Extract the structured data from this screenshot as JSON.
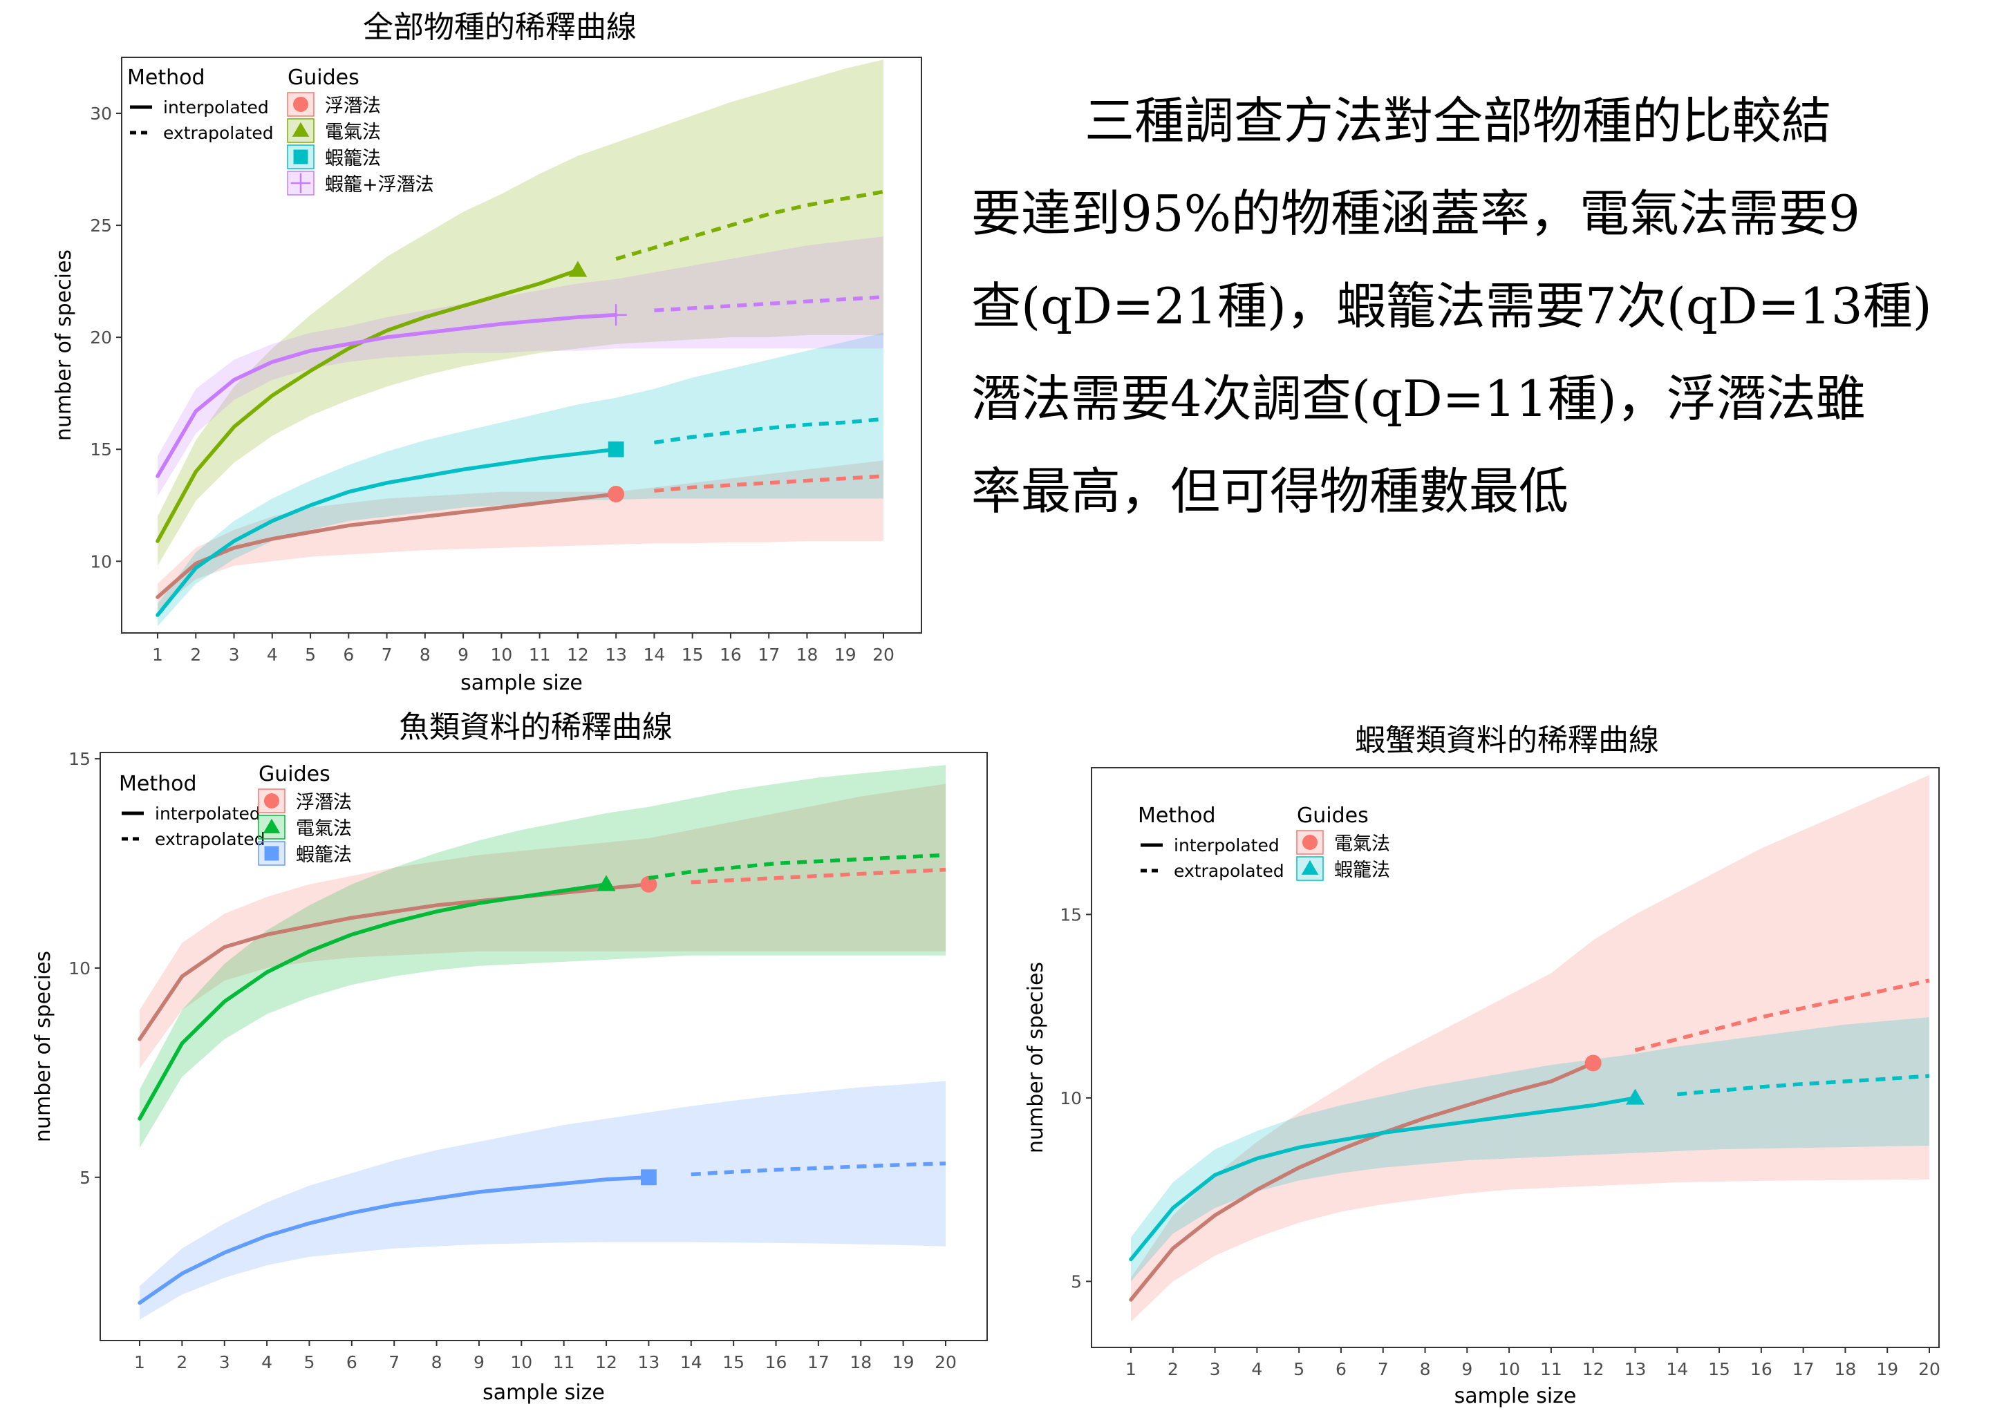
{
  "summary": {
    "lines": [
      "三種調查方法對全部物種的比較結",
      "要達到95%的物種涵蓋率，電氣法需要9",
      "查(qD=21種)，蝦籠法需要7次(qD=13種)",
      "潛法需要4次調查(qD=11種)，浮潛法雖",
      "率最高，但可得物種數最低"
    ]
  },
  "colors": {
    "red": "#F8766D",
    "red_line": "#C77C72",
    "olive": "#7CAE00",
    "teal": "#00BFC4",
    "purple": "#C77CFF",
    "green": "#00BA38",
    "blue": "#619CFF"
  },
  "chart_data": [
    {
      "type": "line",
      "title": "全部物種的稀釋曲線",
      "xlabel": "sample size",
      "ylabel": "number of species",
      "xlim": [
        1,
        20
      ],
      "ylim": [
        6.8,
        32.5
      ],
      "yticks": [
        10,
        15,
        20,
        25,
        30
      ],
      "xticks": [
        1,
        2,
        3,
        4,
        5,
        6,
        7,
        8,
        9,
        10,
        11,
        12,
        13,
        14,
        15,
        16,
        17,
        18,
        19,
        20
      ],
      "grid": false,
      "legend": {
        "method_title": "Method",
        "method_items": [
          "interpolated",
          "extrapolated"
        ],
        "guides_title": "Guides",
        "guides_items": [
          "浮潛法",
          "電氣法",
          "蝦籠法",
          "蝦籠+浮潛法"
        ]
      },
      "series": [
        {
          "name": "浮潛法",
          "color": "#F8766D",
          "line_color": "#C77C72",
          "marker": "circle",
          "obs_x": 13,
          "x": [
            1,
            2,
            3,
            4,
            5,
            6,
            7,
            8,
            9,
            10,
            11,
            12,
            13,
            14,
            15,
            16,
            17,
            18,
            19,
            20
          ],
          "y": [
            8.4,
            9.9,
            10.6,
            11.0,
            11.3,
            11.6,
            11.8,
            12.0,
            12.2,
            12.4,
            12.6,
            12.8,
            13.0,
            13.15,
            13.3,
            13.4,
            13.5,
            13.6,
            13.7,
            13.8
          ],
          "lower": [
            7.8,
            9.2,
            9.8,
            10.0,
            10.2,
            10.3,
            10.4,
            10.5,
            10.55,
            10.6,
            10.65,
            10.7,
            10.75,
            10.8,
            10.8,
            10.85,
            10.85,
            10.9,
            10.9,
            10.9
          ],
          "upper": [
            9.0,
            10.6,
            11.4,
            12.0,
            12.4,
            12.6,
            12.8,
            12.9,
            13.0,
            13.1,
            13.1,
            13.1,
            13.1,
            13.3,
            13.5,
            13.7,
            13.9,
            14.1,
            14.3,
            14.5
          ]
        },
        {
          "name": "電氣法",
          "color": "#7CAE00",
          "line_color": "#7CAE00",
          "marker": "triangle",
          "obs_x": 12,
          "x": [
            1,
            2,
            3,
            4,
            5,
            6,
            7,
            8,
            9,
            10,
            11,
            12,
            13,
            14,
            15,
            16,
            17,
            18,
            19,
            20
          ],
          "y": [
            10.9,
            14.0,
            16.0,
            17.4,
            18.5,
            19.5,
            20.3,
            20.9,
            21.4,
            21.9,
            22.4,
            23.0,
            23.5,
            24.0,
            24.5,
            25.0,
            25.5,
            25.9,
            26.2,
            26.5
          ],
          "lower": [
            9.8,
            12.7,
            14.4,
            15.6,
            16.5,
            17.2,
            17.8,
            18.3,
            18.7,
            19.0,
            19.3,
            19.5,
            19.7,
            19.8,
            19.9,
            20.0,
            20.0,
            20.1,
            20.1,
            20.1
          ],
          "upper": [
            12.0,
            15.4,
            17.8,
            19.5,
            21.0,
            22.3,
            23.6,
            24.6,
            25.6,
            26.4,
            27.3,
            28.1,
            28.7,
            29.3,
            29.9,
            30.5,
            31.0,
            31.5,
            32.0,
            32.4
          ]
        },
        {
          "name": "蝦籠法",
          "color": "#00BFC4",
          "line_color": "#00BFC4",
          "marker": "square",
          "obs_x": 13,
          "x": [
            1,
            2,
            3,
            4,
            5,
            6,
            7,
            8,
            9,
            10,
            11,
            12,
            13,
            14,
            15,
            16,
            17,
            18,
            19,
            20
          ],
          "y": [
            7.6,
            9.7,
            10.9,
            11.8,
            12.5,
            13.1,
            13.5,
            13.8,
            14.1,
            14.35,
            14.6,
            14.8,
            15.0,
            15.3,
            15.55,
            15.75,
            15.95,
            16.1,
            16.2,
            16.35
          ],
          "lower": [
            7.1,
            9.0,
            10.1,
            10.9,
            11.4,
            11.8,
            12.0,
            12.2,
            12.4,
            12.5,
            12.6,
            12.7,
            12.75,
            12.8,
            12.8,
            12.8,
            12.8,
            12.8,
            12.8,
            12.8
          ],
          "upper": [
            8.1,
            10.4,
            11.8,
            12.8,
            13.6,
            14.3,
            14.9,
            15.4,
            15.8,
            16.2,
            16.6,
            17.0,
            17.3,
            17.7,
            18.2,
            18.6,
            19.0,
            19.4,
            19.8,
            20.2
          ]
        },
        {
          "name": "蝦籠+浮潛法",
          "color": "#C77CFF",
          "line_color": "#C77CFF",
          "marker": "plus",
          "obs_x": 13,
          "x": [
            1,
            2,
            3,
            4,
            5,
            6,
            7,
            8,
            9,
            10,
            11,
            12,
            13,
            14,
            15,
            16,
            17,
            18,
            19,
            20
          ],
          "y": [
            13.8,
            16.7,
            18.1,
            18.9,
            19.4,
            19.7,
            20.0,
            20.2,
            20.4,
            20.6,
            20.75,
            20.9,
            21.0,
            21.2,
            21.3,
            21.4,
            21.5,
            21.6,
            21.7,
            21.8
          ],
          "lower": [
            12.9,
            15.7,
            17.2,
            18.1,
            18.6,
            18.9,
            19.1,
            19.2,
            19.3,
            19.3,
            19.4,
            19.4,
            19.5,
            19.5,
            19.5,
            19.5,
            19.5,
            19.5,
            19.5,
            19.5
          ],
          "upper": [
            14.7,
            17.7,
            19.0,
            19.7,
            20.2,
            20.5,
            20.9,
            21.2,
            21.5,
            21.8,
            22.1,
            22.4,
            22.6,
            22.9,
            23.2,
            23.5,
            23.8,
            24.1,
            24.3,
            24.5
          ]
        }
      ]
    },
    {
      "type": "line",
      "title": "魚類資料的稀釋曲線",
      "xlabel": "sample size",
      "ylabel": "number of species",
      "xlim": [
        1,
        20
      ],
      "ylim": [
        1.1,
        15.15
      ],
      "yticks": [
        5,
        10,
        15
      ],
      "xticks": [
        1,
        2,
        3,
        4,
        5,
        6,
        7,
        8,
        9,
        10,
        11,
        12,
        13,
        14,
        15,
        16,
        17,
        18,
        19,
        20
      ],
      "grid": false,
      "legend": {
        "method_title": "Method",
        "method_items": [
          "interpolated",
          "extrapolated"
        ],
        "guides_title": "Guides",
        "guides_items": [
          "浮潛法",
          "電氣法",
          "蝦籠法"
        ]
      },
      "series": [
        {
          "name": "浮潛法",
          "color": "#F8766D",
          "line_color": "#C77C72",
          "marker": "circle",
          "obs_x": 13,
          "x": [
            1,
            2,
            3,
            4,
            5,
            6,
            7,
            8,
            9,
            10,
            11,
            12,
            13,
            14,
            15,
            16,
            17,
            18,
            19,
            20
          ],
          "y": [
            8.3,
            9.8,
            10.5,
            10.8,
            11.0,
            11.2,
            11.35,
            11.5,
            11.6,
            11.7,
            11.8,
            11.9,
            12.0,
            12.05,
            12.1,
            12.15,
            12.2,
            12.25,
            12.3,
            12.35
          ],
          "lower": [
            7.6,
            9.0,
            9.7,
            10.0,
            10.15,
            10.25,
            10.3,
            10.35,
            10.4,
            10.4,
            10.4,
            10.4,
            10.4,
            10.4,
            10.4,
            10.4,
            10.4,
            10.4,
            10.4,
            10.4
          ],
          "upper": [
            9.0,
            10.6,
            11.3,
            11.7,
            12.0,
            12.2,
            12.4,
            12.55,
            12.7,
            12.8,
            12.9,
            13.0,
            13.1,
            13.3,
            13.5,
            13.7,
            13.9,
            14.1,
            14.25,
            14.4
          ]
        },
        {
          "name": "電氣法",
          "color": "#00BA38",
          "line_color": "#00BA38",
          "marker": "triangle",
          "obs_x": 12,
          "x": [
            1,
            2,
            3,
            4,
            5,
            6,
            7,
            8,
            9,
            10,
            11,
            12,
            13,
            14,
            15,
            16,
            17,
            18,
            19,
            20
          ],
          "y": [
            6.4,
            8.2,
            9.2,
            9.9,
            10.4,
            10.8,
            11.1,
            11.35,
            11.55,
            11.7,
            11.85,
            12.0,
            12.15,
            12.3,
            12.4,
            12.5,
            12.55,
            12.6,
            12.65,
            12.7
          ],
          "lower": [
            5.7,
            7.4,
            8.3,
            8.9,
            9.3,
            9.6,
            9.8,
            9.95,
            10.05,
            10.1,
            10.15,
            10.2,
            10.25,
            10.3,
            10.3,
            10.3,
            10.3,
            10.3,
            10.3,
            10.3
          ],
          "upper": [
            7.1,
            9.0,
            10.1,
            10.9,
            11.5,
            12.0,
            12.4,
            12.75,
            13.05,
            13.3,
            13.5,
            13.7,
            13.85,
            14.05,
            14.25,
            14.4,
            14.55,
            14.65,
            14.75,
            14.85
          ]
        },
        {
          "name": "蝦籠法",
          "color": "#619CFF",
          "line_color": "#619CFF",
          "marker": "square",
          "obs_x": 13,
          "x": [
            1,
            2,
            3,
            4,
            5,
            6,
            7,
            8,
            9,
            10,
            11,
            12,
            13,
            14,
            15,
            16,
            17,
            18,
            19,
            20
          ],
          "y": [
            2.0,
            2.7,
            3.2,
            3.6,
            3.9,
            4.15,
            4.35,
            4.5,
            4.65,
            4.75,
            4.85,
            4.95,
            5.0,
            5.07,
            5.13,
            5.18,
            5.22,
            5.26,
            5.3,
            5.33
          ],
          "lower": [
            1.6,
            2.2,
            2.6,
            2.9,
            3.1,
            3.2,
            3.3,
            3.35,
            3.4,
            3.42,
            3.44,
            3.45,
            3.45,
            3.45,
            3.44,
            3.43,
            3.42,
            3.4,
            3.38,
            3.35
          ],
          "upper": [
            2.4,
            3.3,
            3.9,
            4.4,
            4.8,
            5.1,
            5.4,
            5.65,
            5.85,
            6.05,
            6.25,
            6.4,
            6.55,
            6.7,
            6.83,
            6.95,
            7.05,
            7.15,
            7.22,
            7.3
          ]
        }
      ]
    },
    {
      "type": "line",
      "title": "蝦蟹類資料的稀釋曲線",
      "xlabel": "sample size",
      "ylabel": "number of species",
      "xlim": [
        1,
        20
      ],
      "ylim": [
        3.2,
        19.0
      ],
      "yticks": [
        5,
        10,
        15
      ],
      "xticks": [
        1,
        2,
        3,
        4,
        5,
        6,
        7,
        8,
        9,
        10,
        11,
        12,
        13,
        14,
        15,
        16,
        17,
        18,
        19,
        20
      ],
      "grid": false,
      "legend": {
        "method_title": "Method",
        "method_items": [
          "interpolated",
          "extrapolated"
        ],
        "guides_title": "Guides",
        "guides_items": [
          "電氣法",
          "蝦籠法"
        ]
      },
      "series": [
        {
          "name": "電氣法",
          "color": "#F8766D",
          "line_color": "#C77C72",
          "marker": "circle",
          "obs_x": 12,
          "x": [
            1,
            2,
            3,
            4,
            5,
            6,
            7,
            8,
            9,
            10,
            11,
            12,
            13,
            14,
            15,
            16,
            17,
            18,
            19,
            20
          ],
          "y": [
            4.5,
            5.9,
            6.8,
            7.5,
            8.1,
            8.6,
            9.05,
            9.45,
            9.8,
            10.15,
            10.45,
            10.95,
            11.3,
            11.6,
            11.9,
            12.2,
            12.45,
            12.7,
            12.95,
            13.2
          ],
          "lower": [
            3.9,
            5.0,
            5.7,
            6.2,
            6.6,
            6.9,
            7.1,
            7.25,
            7.4,
            7.5,
            7.55,
            7.6,
            7.65,
            7.7,
            7.72,
            7.74,
            7.75,
            7.76,
            7.77,
            7.78
          ],
          "upper": [
            5.1,
            6.8,
            7.9,
            8.8,
            9.6,
            10.3,
            11.0,
            11.6,
            12.2,
            12.8,
            13.4,
            14.3,
            15.0,
            15.6,
            16.2,
            16.8,
            17.3,
            17.8,
            18.3,
            18.8
          ]
        },
        {
          "name": "蝦籠法",
          "color": "#00BFC4",
          "line_color": "#00BFC4",
          "marker": "triangle",
          "obs_x": 13,
          "x": [
            1,
            2,
            3,
            4,
            5,
            6,
            7,
            8,
            9,
            10,
            11,
            12,
            13,
            14,
            15,
            16,
            17,
            18,
            19,
            20
          ],
          "y": [
            5.6,
            7.0,
            7.9,
            8.35,
            8.65,
            8.85,
            9.05,
            9.2,
            9.35,
            9.5,
            9.65,
            9.8,
            10.0,
            10.1,
            10.2,
            10.3,
            10.38,
            10.45,
            10.52,
            10.6
          ],
          "lower": [
            5.0,
            6.3,
            7.0,
            7.45,
            7.75,
            7.95,
            8.1,
            8.2,
            8.3,
            8.35,
            8.4,
            8.45,
            8.5,
            8.55,
            8.6,
            8.62,
            8.64,
            8.66,
            8.68,
            8.7
          ],
          "upper": [
            6.2,
            7.7,
            8.6,
            9.1,
            9.5,
            9.8,
            10.05,
            10.3,
            10.5,
            10.7,
            10.9,
            11.05,
            11.2,
            11.4,
            11.55,
            11.7,
            11.85,
            12.0,
            12.1,
            12.2
          ]
        }
      ]
    }
  ]
}
